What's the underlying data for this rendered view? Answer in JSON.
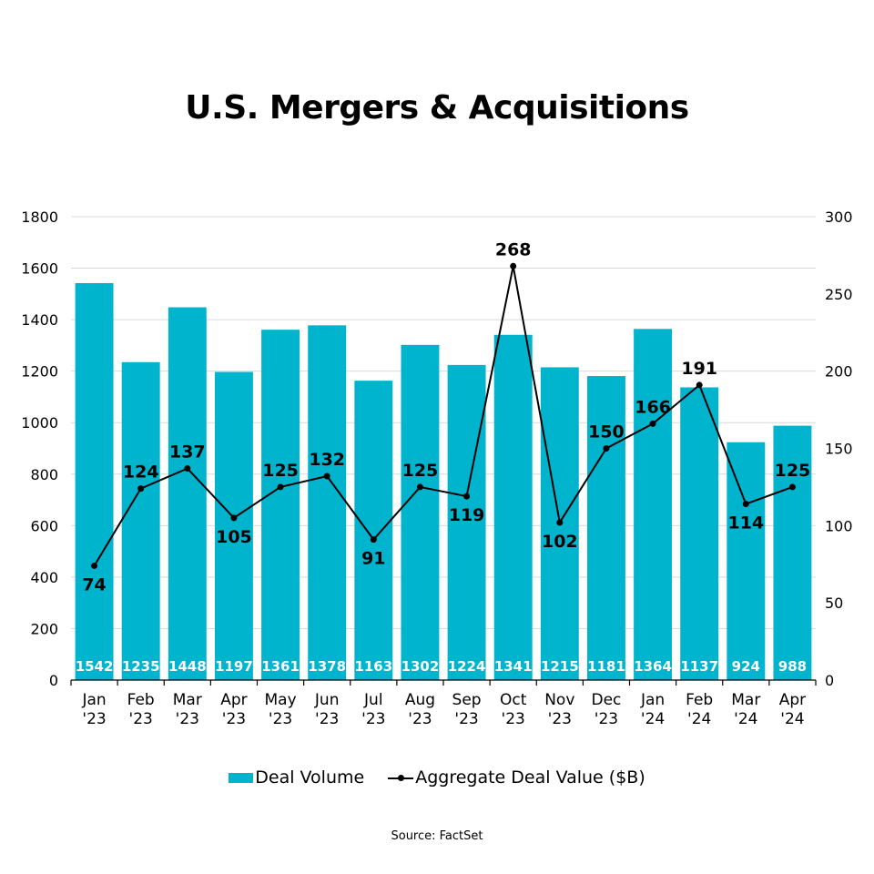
{
  "chart_data": {
    "type": "bar",
    "title": "U.S. Mergers & Acquisitions",
    "categories": [
      [
        "Jan",
        "'23"
      ],
      [
        "Feb",
        "'23"
      ],
      [
        "Mar",
        "'23"
      ],
      [
        "Apr",
        "'23"
      ],
      [
        "May",
        "'23"
      ],
      [
        "Jun",
        "'23"
      ],
      [
        "Jul",
        "'23"
      ],
      [
        "Aug",
        "'23"
      ],
      [
        "Sep",
        "'23"
      ],
      [
        "Oct",
        "'23"
      ],
      [
        "Nov",
        "'23"
      ],
      [
        "Dec",
        "'23"
      ],
      [
        "Jan",
        "'24"
      ],
      [
        "Feb",
        "'24"
      ],
      [
        "Mar",
        "'24"
      ],
      [
        "Apr",
        "'24"
      ]
    ],
    "series": [
      {
        "name": "Deal Volume",
        "type": "bar",
        "axis": "left",
        "color": "#00B4CE",
        "values": [
          1542,
          1235,
          1448,
          1197,
          1361,
          1378,
          1163,
          1302,
          1224,
          1341,
          1215,
          1181,
          1364,
          1137,
          924,
          988
        ]
      },
      {
        "name": "Aggregate Deal Value ($B)",
        "type": "line",
        "axis": "right",
        "color": "#000000",
        "values": [
          74,
          124,
          137,
          105,
          125,
          132,
          91,
          125,
          119,
          268,
          102,
          150,
          166,
          191,
          114,
          125
        ],
        "label_positions": [
          "below",
          "above",
          "above",
          "below",
          "above",
          "above",
          "below",
          "above",
          "below",
          "above",
          "below",
          "above",
          "above",
          "above",
          "below",
          "above"
        ]
      }
    ],
    "y_left": {
      "lim": [
        0,
        1800
      ],
      "ticks": [
        0,
        200,
        400,
        600,
        800,
        1000,
        1200,
        1400,
        1600,
        1800
      ]
    },
    "y_right": {
      "lim": [
        0,
        300
      ],
      "ticks": [
        0,
        50,
        100,
        150,
        200,
        250,
        300
      ]
    },
    "xlabel": "",
    "ylabel": "",
    "grid": true,
    "legend_position": "bottom-center",
    "source": "Source: FactSet"
  },
  "legend": {
    "bar_label": "Deal Volume",
    "line_label": "Aggregate Deal Value ($B)"
  },
  "source": "Source: FactSet"
}
